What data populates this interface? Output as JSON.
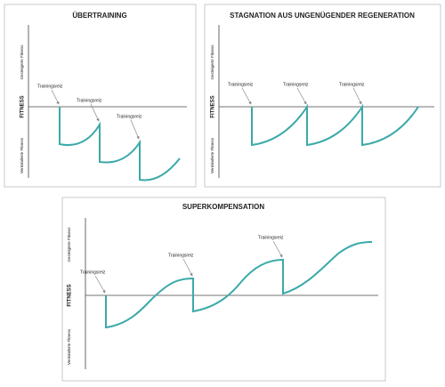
{
  "panels": [
    {
      "title": "ÜBERTRAINING",
      "axis": {
        "up": "Gesteigerte Fitness",
        "mid": "FITNESS",
        "down": "Verminderte Fitness"
      },
      "stimuli": [
        "Trainingsreiz",
        "Trainingsreiz",
        "Trainingsreiz"
      ]
    },
    {
      "title": "STAGNATION AUS UNGENÜGENDER REGENERATION",
      "axis": {
        "up": "Gesteigerte Fitness",
        "mid": "FITNESS",
        "down": "Verminderte Fitness"
      },
      "stimuli": [
        "Trainingsreiz",
        "Trainingsreiz",
        "Trainingsreiz"
      ]
    },
    {
      "title": "SUPERKOMPENSATION",
      "axis": {
        "up": "Gesteigerte Fitness",
        "mid": "FITNESS",
        "down": "Verminderte Fitness"
      },
      "stimuli": [
        "Trainingsreiz",
        "Trainingsreiz",
        "Trainingsreiz"
      ]
    }
  ]
}
